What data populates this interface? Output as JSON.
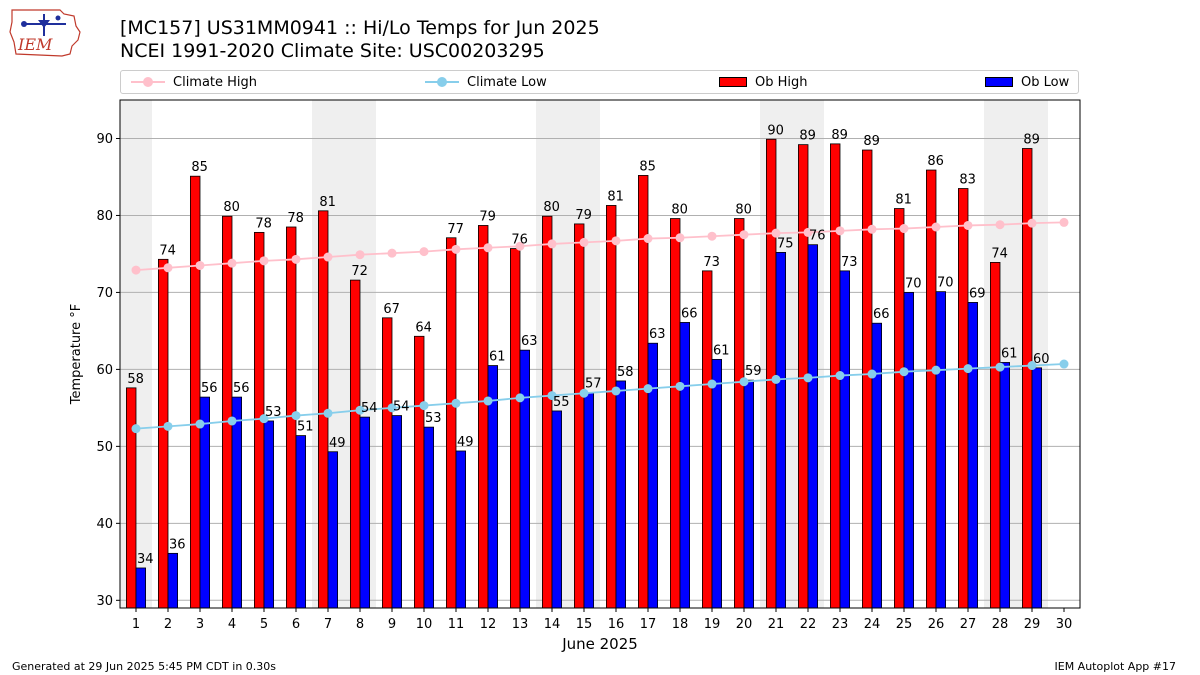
{
  "header": {
    "title_line1": "[MC157] US31MM0941  :: Hi/Lo Temps for Jun 2025",
    "title_line2": "NCEI 1991-2020 Climate Site: USC00203295"
  },
  "logo": {
    "text": "IEM"
  },
  "footer": {
    "left": "Generated at 29 Jun 2025 5:45 PM CDT in 0.30s",
    "right": "IEM Autoplot App #17"
  },
  "legend": [
    {
      "label": "Climate High",
      "color": "#ffc0cb",
      "kind": "line"
    },
    {
      "label": "Climate Low",
      "color": "#87ceeb",
      "kind": "line"
    },
    {
      "label": "Ob High",
      "color": "#ff0000",
      "kind": "bar"
    },
    {
      "label": "Ob Low",
      "color": "#0000ff",
      "kind": "bar"
    }
  ],
  "chart_data": {
    "type": "bar",
    "xlabel": "June 2025",
    "ylabel": "Temperature °F",
    "ylim": [
      29,
      95
    ],
    "yticks": [
      30,
      40,
      50,
      60,
      70,
      80,
      90
    ],
    "grid": true,
    "legend_position": "top",
    "categories": [
      1,
      2,
      3,
      4,
      5,
      6,
      7,
      8,
      9,
      10,
      11,
      12,
      13,
      14,
      15,
      16,
      17,
      18,
      19,
      20,
      21,
      22,
      23,
      24,
      25,
      26,
      27,
      28,
      29,
      30
    ],
    "weekend_shading_days": [
      1,
      7,
      8,
      14,
      15,
      21,
      22,
      28,
      29
    ],
    "series": [
      {
        "name": "Ob High",
        "type": "bar",
        "color": "#ff0000",
        "values": [
          58,
          74,
          85,
          80,
          78,
          78,
          81,
          72,
          67,
          64,
          77,
          79,
          76,
          80,
          79,
          81,
          85,
          80,
          73,
          80,
          90,
          89,
          89,
          89,
          81,
          86,
          83,
          74,
          89,
          null
        ],
        "plot_values": [
          57.6,
          74.3,
          85.1,
          79.9,
          77.8,
          78.5,
          80.6,
          71.6,
          66.7,
          64.3,
          77.1,
          78.7,
          75.7,
          79.9,
          78.9,
          81.3,
          85.2,
          79.6,
          72.8,
          79.6,
          89.9,
          89.2,
          89.3,
          88.5,
          80.9,
          85.9,
          83.5,
          73.9,
          88.7,
          null
        ]
      },
      {
        "name": "Ob Low",
        "type": "bar",
        "color": "#0000ff",
        "values": [
          34,
          36,
          56,
          56,
          53,
          51,
          49,
          54,
          54,
          53,
          49,
          61,
          63,
          55,
          57,
          58,
          63,
          66,
          61,
          59,
          75,
          76,
          73,
          66,
          70,
          70,
          69,
          61,
          60,
          null
        ],
        "plot_values": [
          34.2,
          36.1,
          56.4,
          56.4,
          53.3,
          51.4,
          49.3,
          53.8,
          54.0,
          52.5,
          49.4,
          60.5,
          62.5,
          54.6,
          57.0,
          58.5,
          63.4,
          66.1,
          61.3,
          58.6,
          75.2,
          76.2,
          72.8,
          66.0,
          70.0,
          70.1,
          68.7,
          60.9,
          60.2,
          null
        ]
      },
      {
        "name": "Climate High",
        "type": "line",
        "color": "#ffc0cb",
        "values": [
          72.9,
          73.2,
          73.5,
          73.8,
          74.1,
          74.3,
          74.6,
          74.9,
          75.1,
          75.3,
          75.6,
          75.8,
          76.0,
          76.3,
          76.5,
          76.7,
          77.0,
          77.1,
          77.3,
          77.5,
          77.7,
          77.8,
          78.0,
          78.2,
          78.3,
          78.5,
          78.7,
          78.8,
          79.0,
          79.1
        ]
      },
      {
        "name": "Climate Low",
        "type": "line",
        "color": "#87ceeb",
        "values": [
          52.3,
          52.6,
          52.9,
          53.3,
          53.6,
          54.0,
          54.3,
          54.7,
          55.0,
          55.3,
          55.6,
          55.9,
          56.3,
          56.6,
          56.9,
          57.2,
          57.5,
          57.8,
          58.1,
          58.4,
          58.7,
          58.9,
          59.2,
          59.4,
          59.7,
          59.9,
          60.1,
          60.3,
          60.5,
          60.7
        ]
      }
    ]
  }
}
